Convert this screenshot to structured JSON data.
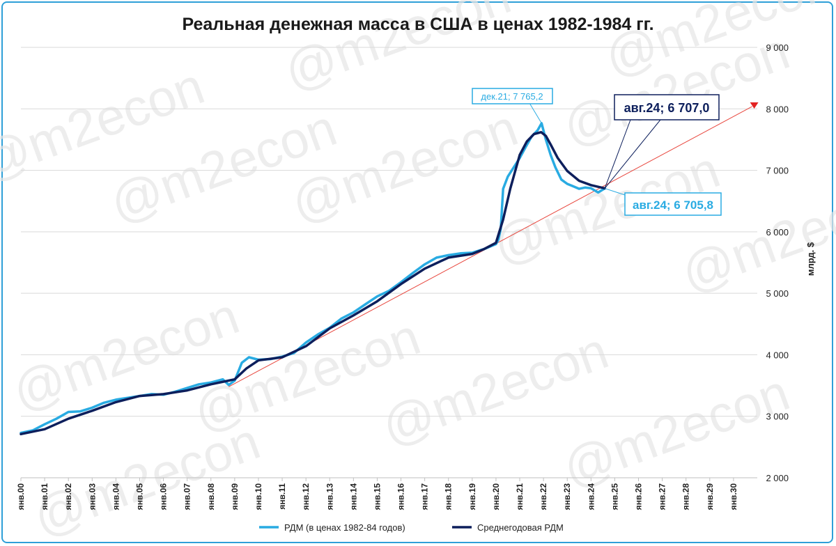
{
  "chart_data": {
    "type": "line",
    "title": "Реальная денежная масса в США в ценах 1982-1984 гг.",
    "ylabel": "млрд. $",
    "ylim": [
      2000,
      9000
    ],
    "yticks": [
      "2 000",
      "3 000",
      "4 000",
      "5 000",
      "6 000",
      "7 000",
      "8 000",
      "9 000"
    ],
    "y_axis_side": "right",
    "grid": "horizontal",
    "legend_position": "bottom",
    "xrange": [
      2000,
      2031
    ],
    "xtick_labels": [
      "янв.00",
      "янв.01",
      "янв.02",
      "янв.03",
      "янв.04",
      "янв.05",
      "янв.06",
      "янв.07",
      "янв.08",
      "янв.09",
      "янв.10",
      "янв.11",
      "янв.12",
      "янв.13",
      "янв.14",
      "янв.15",
      "янв.16",
      "янв.17",
      "янв.18",
      "янв.19",
      "янв.20",
      "янв.21",
      "янв.22",
      "янв.23",
      "янв.24",
      "янв.25",
      "янв.26",
      "янв.27",
      "янв.28",
      "янв.29",
      "янв.30"
    ],
    "colors": {
      "rdm": "#29abe2",
      "avg": "#0d1f5c",
      "trend": "#e8453c",
      "grid": "#d9d9d9"
    },
    "series": [
      {
        "name": "РДМ (в ценах 1982-84 годов)",
        "x": [
          2000,
          2000.5,
          2001,
          2001.5,
          2002,
          2002.5,
          2003,
          2003.5,
          2004,
          2004.5,
          2005,
          2005.5,
          2006,
          2006.5,
          2007,
          2007.5,
          2008,
          2008.5,
          2008.75,
          2009,
          2009.3,
          2009.6,
          2010,
          2010.5,
          2011,
          2011.5,
          2012,
          2012.5,
          2013,
          2013.5,
          2014,
          2014.5,
          2015,
          2015.5,
          2016,
          2016.5,
          2017,
          2017.5,
          2018,
          2018.5,
          2019,
          2019.5,
          2020,
          2020.1,
          2020.2,
          2020.3,
          2020.5,
          2020.75,
          2021,
          2021.25,
          2021.5,
          2021.75,
          2021.92,
          2022.1,
          2022.3,
          2022.5,
          2022.75,
          2023,
          2023.25,
          2023.5,
          2023.75,
          2024,
          2024.3,
          2024.58
        ],
        "values": [
          2730,
          2770,
          2870,
          2960,
          3070,
          3080,
          3140,
          3220,
          3270,
          3300,
          3330,
          3360,
          3350,
          3400,
          3460,
          3520,
          3550,
          3600,
          3510,
          3580,
          3870,
          3960,
          3920,
          3930,
          3970,
          4030,
          4200,
          4330,
          4440,
          4590,
          4690,
          4820,
          4950,
          5040,
          5180,
          5330,
          5470,
          5580,
          5620,
          5650,
          5660,
          5720,
          5800,
          5870,
          6050,
          6700,
          6900,
          7050,
          7200,
          7380,
          7550,
          7650,
          7765.2,
          7500,
          7250,
          7050,
          6850,
          6780,
          6740,
          6700,
          6720,
          6710,
          6640,
          6705.8
        ]
      },
      {
        "name": "Среднегодовая РДМ",
        "x": [
          2000,
          2001,
          2002,
          2003,
          2004,
          2005,
          2006,
          2007,
          2008,
          2008.75,
          2009,
          2009.5,
          2010,
          2011,
          2012,
          2013,
          2014,
          2015,
          2016,
          2017,
          2018,
          2019,
          2019.5,
          2020,
          2020.3,
          2020.6,
          2021,
          2021.3,
          2021.6,
          2021.9,
          2022.1,
          2022.3,
          2022.6,
          2023,
          2023.5,
          2024,
          2024.58
        ],
        "values": [
          2710,
          2790,
          2960,
          3090,
          3230,
          3330,
          3360,
          3420,
          3520,
          3580,
          3600,
          3780,
          3910,
          3960,
          4140,
          4430,
          4640,
          4870,
          5150,
          5400,
          5580,
          5640,
          5720,
          5820,
          6200,
          6700,
          7250,
          7470,
          7590,
          7620,
          7560,
          7420,
          7200,
          6990,
          6830,
          6760,
          6707.0
        ]
      }
    ],
    "trend_line": {
      "from": [
        2008.75,
        3480
      ],
      "to": [
        2030.9,
        8060
      ]
    },
    "annotations": [
      {
        "text": "дек.21; 7 765,2",
        "x": 2021.92,
        "y": 7765.2
      },
      {
        "text": "авг.24; 6 707,0",
        "x": 2024.58,
        "y": 6707.0
      },
      {
        "text": "авг.24; 6 705,8",
        "x": 2024.58,
        "y": 6705.8
      }
    ],
    "legend": [
      "РДМ (в ценах 1982-84 годов)",
      "Среднегодовая РДМ"
    ]
  },
  "watermark": "@m2econ"
}
